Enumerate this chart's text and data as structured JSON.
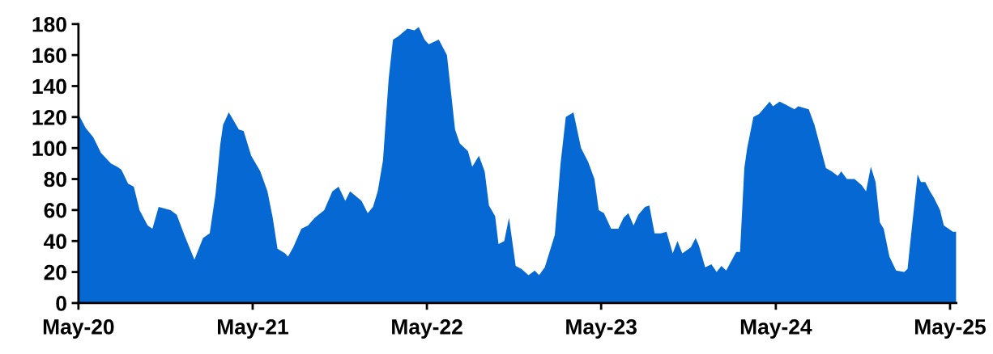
{
  "chart_data": {
    "type": "area",
    "color": "#0568d3",
    "x": [
      "2020-05-01",
      "2020-05-16",
      "2020-06-01",
      "2020-06-17",
      "2020-07-08",
      "2020-07-21",
      "2020-07-30",
      "2020-08-13",
      "2020-08-25",
      "2020-09-06",
      "2020-09-23",
      "2020-10-03",
      "2020-10-16",
      "2020-11-10",
      "2020-11-23",
      "2020-12-10",
      "2020-12-30",
      "2021-01-17",
      "2021-01-31",
      "2021-02-12",
      "2021-02-22",
      "2021-02-28",
      "2021-03-12",
      "2021-04-02",
      "2021-04-12",
      "2021-04-28",
      "2021-05-17",
      "2021-06-01",
      "2021-06-12",
      "2021-06-22",
      "2021-07-08",
      "2021-07-14",
      "2021-07-25",
      "2021-08-11",
      "2021-08-25",
      "2021-09-08",
      "2021-09-28",
      "2021-10-15",
      "2021-10-28",
      "2021-11-11",
      "2021-11-21",
      "2021-12-15",
      "2021-12-28",
      "2022-01-08",
      "2022-01-18",
      "2022-01-29",
      "2022-02-10",
      "2022-02-19",
      "2022-03-02",
      "2022-03-21",
      "2022-04-05",
      "2022-04-14",
      "2022-04-26",
      "2022-05-05",
      "2022-05-26",
      "2022-06-12",
      "2022-06-29",
      "2022-07-09",
      "2022-07-26",
      "2022-08-04",
      "2022-08-18",
      "2022-08-30",
      "2022-09-08",
      "2022-09-21",
      "2022-09-28",
      "2022-10-10",
      "2022-10-20",
      "2022-11-03",
      "2022-11-15",
      "2022-11-30",
      "2022-12-13",
      "2022-12-22",
      "2023-01-03",
      "2023-01-24",
      "2023-02-05",
      "2023-02-16",
      "2023-03-04",
      "2023-03-20",
      "2023-04-04",
      "2023-04-17",
      "2023-04-26",
      "2023-05-07",
      "2023-05-22",
      "2023-06-06",
      "2023-06-17",
      "2023-06-27",
      "2023-07-08",
      "2023-07-18",
      "2023-08-01",
      "2023-08-10",
      "2023-08-21",
      "2023-09-03",
      "2023-09-15",
      "2023-09-28",
      "2023-10-08",
      "2023-10-18",
      "2023-11-05",
      "2023-11-15",
      "2023-11-22",
      "2023-12-05",
      "2023-12-18",
      "2023-12-29",
      "2024-01-08",
      "2024-01-18",
      "2024-02-08",
      "2024-02-16",
      "2024-02-25",
      "2024-03-02",
      "2024-03-15",
      "2024-03-27",
      "2024-04-18",
      "2024-04-25",
      "2024-05-09",
      "2024-05-22",
      "2024-06-09",
      "2024-06-17",
      "2024-07-09",
      "2024-07-21",
      "2024-08-14",
      "2024-08-26",
      "2024-09-08",
      "2024-09-15",
      "2024-09-27",
      "2024-10-13",
      "2024-10-28",
      "2024-11-06",
      "2024-11-16",
      "2024-11-26",
      "2024-12-05",
      "2024-12-13",
      "2024-12-25",
      "2025-01-08",
      "2025-01-25",
      "2025-02-01",
      "2025-02-07",
      "2025-02-22",
      "2025-03-01",
      "2025-03-10",
      "2025-03-20",
      "2025-03-28",
      "2025-04-10",
      "2025-04-18",
      "2025-05-07",
      "2025-05-14"
    ],
    "values": [
      122,
      113,
      107,
      97,
      90,
      88,
      86,
      77,
      75,
      60,
      50,
      48,
      62,
      60,
      57,
      43,
      28,
      42,
      45,
      70,
      102,
      115,
      123,
      112,
      111,
      95,
      85,
      72,
      55,
      35,
      32,
      30,
      36,
      48,
      50,
      55,
      60,
      72,
      75,
      66,
      72,
      66,
      58,
      62,
      72,
      92,
      145,
      170,
      172,
      177,
      176,
      178,
      170,
      167,
      170,
      160,
      112,
      103,
      98,
      88,
      95,
      85,
      63,
      56,
      38,
      40,
      55,
      24,
      22,
      18,
      21,
      18,
      23,
      44,
      90,
      120,
      123,
      100,
      91,
      80,
      60,
      58,
      48,
      48,
      55,
      58,
      50,
      57,
      62,
      63,
      45,
      45,
      46,
      32,
      40,
      32,
      36,
      42,
      37,
      23,
      25,
      20,
      24,
      21,
      33,
      33,
      87,
      100,
      120,
      122,
      130,
      127,
      130,
      128,
      125,
      127,
      125,
      115,
      87,
      85,
      82,
      85,
      80,
      80,
      76,
      72,
      88,
      78,
      52,
      48,
      30,
      21,
      20,
      22,
      40,
      83,
      78,
      78,
      72,
      68,
      60,
      50,
      46,
      46
    ],
    "xlim": [
      "2020-05-01",
      "2025-05-14"
    ],
    "xticks": [
      {
        "value": "2020-05-01",
        "label": "May-20"
      },
      {
        "value": "2021-05-01",
        "label": "May-21"
      },
      {
        "value": "2022-05-01",
        "label": "May-22"
      },
      {
        "value": "2023-05-01",
        "label": "May-23"
      },
      {
        "value": "2024-05-01",
        "label": "May-24"
      },
      {
        "value": "2025-05-01",
        "label": "May-25"
      }
    ],
    "ylim": [
      0,
      180
    ],
    "yticks": [
      0,
      20,
      40,
      60,
      80,
      100,
      120,
      140,
      160,
      180
    ],
    "grid": false
  }
}
